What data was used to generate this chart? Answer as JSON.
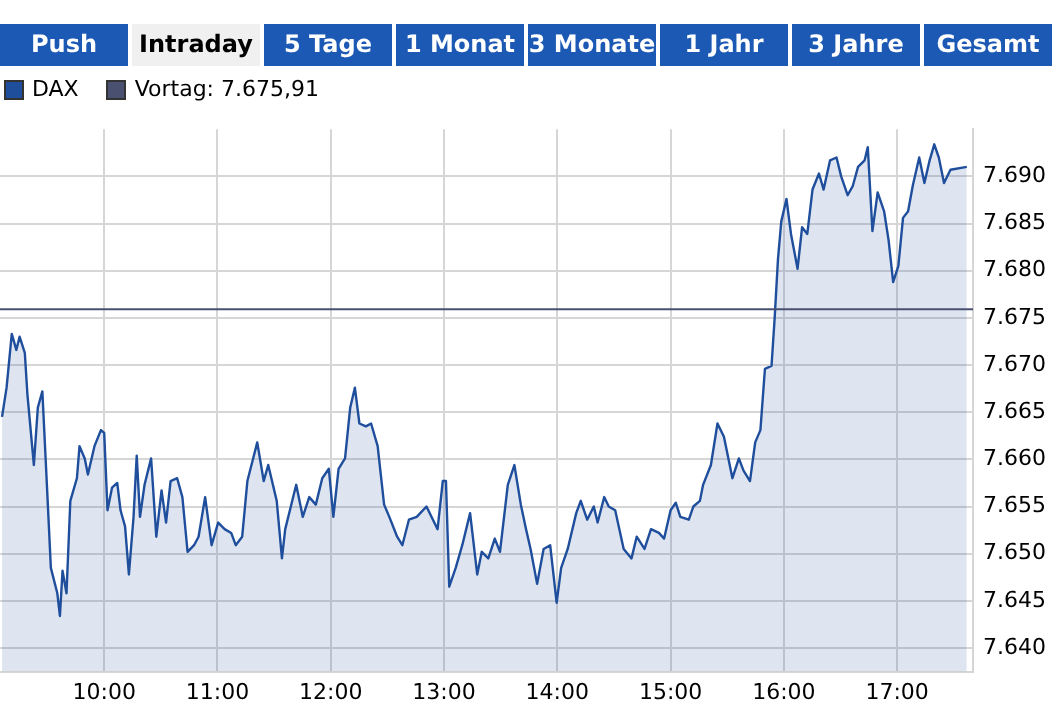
{
  "chart_data": {
    "type": "area",
    "annotations": [
      "Push",
      "Intraday",
      "5 Tage",
      "1 Monat",
      "3 Monate",
      "1 Jahr",
      "3 Jahre",
      "Gesamt"
    ],
    "legend": "top left",
    "grid": true,
    "xlim": [
      9.08,
      17.67
    ],
    "xticks": [
      {
        "value": 10,
        "label": "10:00"
      },
      {
        "value": 11,
        "label": "11:00"
      },
      {
        "value": 12,
        "label": "12:00"
      },
      {
        "value": 13,
        "label": "13:00"
      },
      {
        "value": 14,
        "label": "14:00"
      },
      {
        "value": 15,
        "label": "15:00"
      },
      {
        "value": 16,
        "label": "16:00"
      },
      {
        "value": 17,
        "label": "17:00"
      }
    ],
    "ylim": [
      7637.5,
      7695
    ],
    "yticks": [
      {
        "value": 7640,
        "label": "7.640"
      },
      {
        "value": 7645,
        "label": "7.645"
      },
      {
        "value": 7650,
        "label": "7.650"
      },
      {
        "value": 7655,
        "label": "7.655"
      },
      {
        "value": 7660,
        "label": "7.660"
      },
      {
        "value": 7665,
        "label": "7.665"
      },
      {
        "value": 7670,
        "label": "7.670"
      },
      {
        "value": 7675,
        "label": "7.675"
      },
      {
        "value": 7680,
        "label": "7.680"
      },
      {
        "value": 7685,
        "label": "7.685"
      },
      {
        "value": 7690,
        "label": "7.690"
      }
    ],
    "ref_lines": [
      {
        "axis": "y",
        "value": 7675.91,
        "label": "Vortag: 7.675,91",
        "color": "#4a5070"
      }
    ],
    "series": [
      {
        "name": "DAX",
        "color": "#1f4e9c",
        "x": [
          9.098,
          9.138,
          9.184,
          9.224,
          9.253,
          9.299,
          9.322,
          9.379,
          9.414,
          9.454,
          9.494,
          9.529,
          9.586,
          9.609,
          9.632,
          9.667,
          9.701,
          9.759,
          9.782,
          9.828,
          9.856,
          9.914,
          9.971,
          10.0,
          10.029,
          10.069,
          10.115,
          10.144,
          10.184,
          10.218,
          10.259,
          10.287,
          10.316,
          10.356,
          10.414,
          10.46,
          10.506,
          10.546,
          10.586,
          10.644,
          10.69,
          10.736,
          10.793,
          10.833,
          10.891,
          10.948,
          11.006,
          11.063,
          11.121,
          11.161,
          11.218,
          11.264,
          11.351,
          11.408,
          11.448,
          11.523,
          11.569,
          11.598,
          11.695,
          11.753,
          11.81,
          11.868,
          11.925,
          11.983,
          12.023,
          12.069,
          12.126,
          12.172,
          12.213,
          12.253,
          12.31,
          12.356,
          12.414,
          12.471,
          12.517,
          12.586,
          12.632,
          12.69,
          12.759,
          12.845,
          12.943,
          12.989,
          13.017,
          13.046,
          13.103,
          13.161,
          13.23,
          13.293,
          13.333,
          13.391,
          13.448,
          13.494,
          13.563,
          13.621,
          13.678,
          13.724,
          13.764,
          13.822,
          13.879,
          13.937,
          13.994,
          14.034,
          14.092,
          14.167,
          14.207,
          14.264,
          14.322,
          14.356,
          14.414,
          14.454,
          14.511,
          14.586,
          14.655,
          14.701,
          14.77,
          14.827,
          14.897,
          14.943,
          15.0,
          15.046,
          15.086,
          15.161,
          15.201,
          15.259,
          15.287,
          15.356,
          15.414,
          15.471,
          15.546,
          15.603,
          15.644,
          15.701,
          15.747,
          15.793,
          15.833,
          15.891,
          15.919,
          15.948,
          15.977,
          16.023,
          16.063,
          16.121,
          16.161,
          16.207,
          16.253,
          16.31,
          16.351,
          16.408,
          16.465,
          16.506,
          16.563,
          16.609,
          16.655,
          16.713,
          16.741,
          16.782,
          16.828,
          16.885,
          16.925,
          16.965,
          17.011,
          17.052,
          17.097,
          17.138,
          17.195,
          17.241,
          17.287,
          17.328,
          17.368,
          17.414,
          17.471,
          17.615
        ],
        "values": [
          7664.5,
          7667.6,
          7673.3,
          7671.6,
          7673,
          7671.3,
          7666.9,
          7659.4,
          7665.5,
          7667.2,
          7657.3,
          7648.5,
          7645.8,
          7643.4,
          7648.2,
          7645.8,
          7655.6,
          7658,
          7661.4,
          7660.1,
          7658.4,
          7661.4,
          7663.1,
          7662.8,
          7654.6,
          7657,
          7657.5,
          7654.6,
          7652.9,
          7647.8,
          7653.9,
          7660.4,
          7653.9,
          7657.3,
          7660.1,
          7651.8,
          7656.7,
          7653.3,
          7657.7,
          7658,
          7656,
          7650.2,
          7650.9,
          7651.8,
          7656,
          7650.9,
          7653.3,
          7652.6,
          7652.2,
          7650.9,
          7651.8,
          7657.7,
          7661.8,
          7657.7,
          7659.4,
          7655.6,
          7649.5,
          7652.6,
          7657.3,
          7653.9,
          7656,
          7655.2,
          7658,
          7659,
          7653.9,
          7659,
          7660.1,
          7665.5,
          7667.6,
          7663.8,
          7663.5,
          7663.8,
          7661.4,
          7655.2,
          7653.9,
          7651.8,
          7650.9,
          7653.6,
          7653.9,
          7655,
          7652.6,
          7657.7,
          7657.7,
          7646.5,
          7648.5,
          7650.9,
          7654.3,
          7647.8,
          7650.2,
          7649.5,
          7651.6,
          7650.2,
          7657.3,
          7659.4,
          7655.2,
          7652.6,
          7650.5,
          7646.8,
          7650.5,
          7650.9,
          7644.8,
          7648.5,
          7650.5,
          7654.3,
          7655.6,
          7653.6,
          7655,
          7653.3,
          7656,
          7655,
          7654.6,
          7650.5,
          7649.5,
          7651.8,
          7650.5,
          7652.6,
          7652.2,
          7651.6,
          7654.6,
          7655.4,
          7653.9,
          7653.6,
          7655,
          7655.6,
          7657.3,
          7659.4,
          7663.8,
          7662.4,
          7658,
          7660.1,
          7658.8,
          7657.7,
          7661.8,
          7663.1,
          7669.6,
          7669.9,
          7675,
          7681.2,
          7685.2,
          7687.6,
          7683.9,
          7680.2,
          7684.6,
          7683.9,
          7688.6,
          7690.3,
          7688.6,
          7691.7,
          7692,
          7690,
          7688,
          7689,
          7691,
          7691.7,
          7693.1,
          7684.2,
          7688.3,
          7686.3,
          7683.2,
          7678.8,
          7680.5,
          7685.6,
          7686.3,
          7689,
          7692,
          7689.3,
          7691.7,
          7693.4,
          7692,
          7689.3,
          7690.7,
          7691
        ]
      }
    ]
  }
}
